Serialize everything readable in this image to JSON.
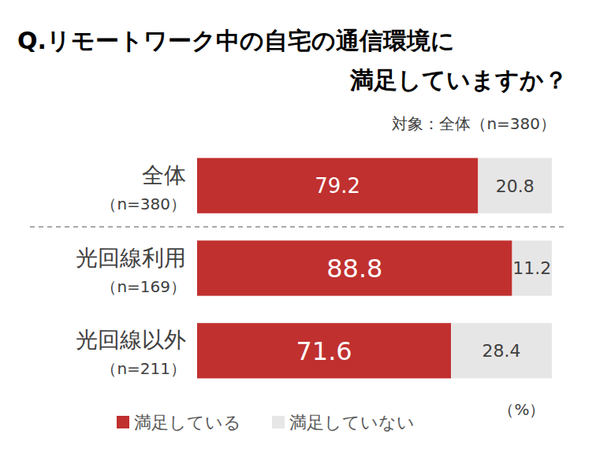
{
  "chart_data": {
    "type": "bar",
    "orientation": "horizontal",
    "stacked": true,
    "data_labels": true,
    "tick_labels": false,
    "grid": false,
    "legend": "bottom",
    "title": "Q.リモートワーク中の自宅の通信環境に\n満足していますか？",
    "subtitle": "対象：全体（n=380）",
    "xlabel": "（%）",
    "categories": [
      "全体\n（n=380）",
      "光回線利用\n（n=169）",
      "光回線以外\n（n=211）"
    ],
    "xlim": [
      0,
      100
    ],
    "series": [
      {
        "name": "満足している",
        "color": "#c0302f",
        "values": [
          79.2,
          88.8,
          71.6
        ]
      },
      {
        "name": "満足していない",
        "color": "#e7e6e6",
        "values": [
          20.8,
          11.2,
          28.4
        ]
      }
    ]
  }
}
